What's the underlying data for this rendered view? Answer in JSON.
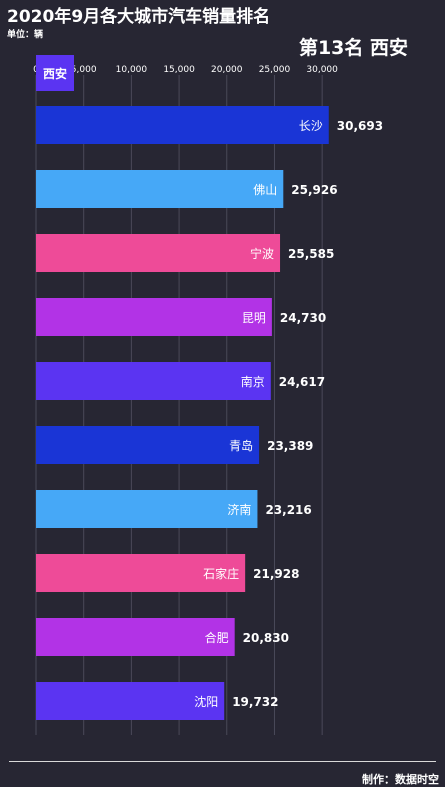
{
  "header": {
    "title": "2020年9月各大城市汽车销量排名",
    "unit": "单位：辆",
    "rank_label": "第13名 西安"
  },
  "footer": {
    "credit": "制作：数据时空"
  },
  "colors": {
    "background": "#272633",
    "grid": "#4a4959",
    "text": "#ffffff",
    "palette": [
      "#1a35d6",
      "#46a8f7",
      "#ee4b98",
      "#b233e6",
      "#5b34f2"
    ]
  },
  "chart_data": {
    "type": "bar",
    "orientation": "horizontal",
    "categories": [
      "长沙",
      "佛山",
      "宁波",
      "昆明",
      "南京",
      "青岛",
      "济南",
      "石家庄",
      "合肥",
      "沈阳"
    ],
    "values": [
      30693,
      25926,
      25585,
      24730,
      24617,
      23389,
      23216,
      21928,
      20830,
      19732
    ],
    "value_labels": [
      "30,693",
      "25,926",
      "25,585",
      "24,730",
      "24,617",
      "23,389",
      "23,216",
      "21,928",
      "20,830",
      "19,732"
    ],
    "bar_colors": [
      "#1a35d6",
      "#46a8f7",
      "#ee4b98",
      "#b233e6",
      "#5b34f2",
      "#1a35d6",
      "#46a8f7",
      "#ee4b98",
      "#b233e6",
      "#5b34f2"
    ],
    "xlim": [
      0,
      32500
    ],
    "ticks": [
      0,
      5000,
      10000,
      15000,
      20000,
      25000,
      30000
    ],
    "tick_labels": [
      "0",
      "5,000",
      "10,000",
      "15,000",
      "20,000",
      "25,000",
      "30,000"
    ],
    "axis_position": "top",
    "grid": true,
    "highlight": {
      "category": "西安",
      "value": 1200,
      "color": "#5b34f2"
    }
  }
}
